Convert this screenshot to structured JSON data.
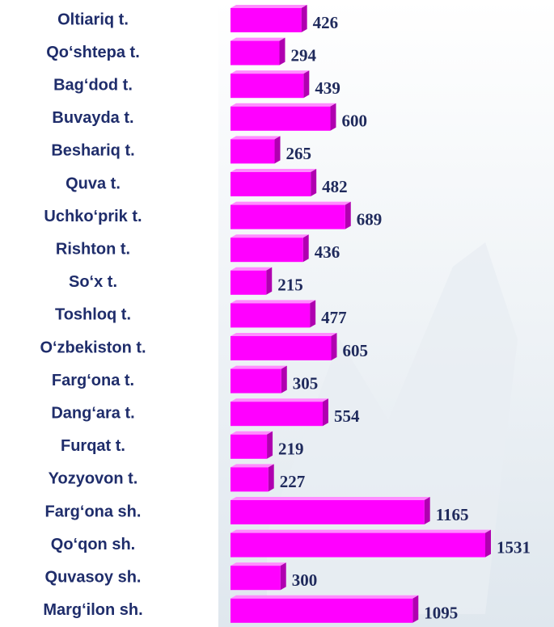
{
  "chart_data": {
    "type": "bar",
    "orientation": "horizontal",
    "categories": [
      "Oltiariq t.",
      "Qo‘shtepa t.",
      "Bag‘dod t.",
      "Buvayda t.",
      "Beshariq t.",
      "Quva t.",
      "Uchko‘prik t.",
      "Rishton t.",
      "So‘x t.",
      "Toshloq t.",
      "O‘zbekiston t.",
      "Farg‘ona t.",
      "Dang‘ara t.",
      "Furqat t.",
      "Yozyovon t.",
      "Farg‘ona sh.",
      "Qo‘qon sh.",
      "Quvasoy sh.",
      "Marg‘ilon sh."
    ],
    "values": [
      426,
      294,
      439,
      600,
      265,
      482,
      689,
      436,
      215,
      477,
      605,
      305,
      554,
      219,
      227,
      1165,
      1531,
      300,
      1095
    ],
    "color": "#ff00ff"
  }
}
